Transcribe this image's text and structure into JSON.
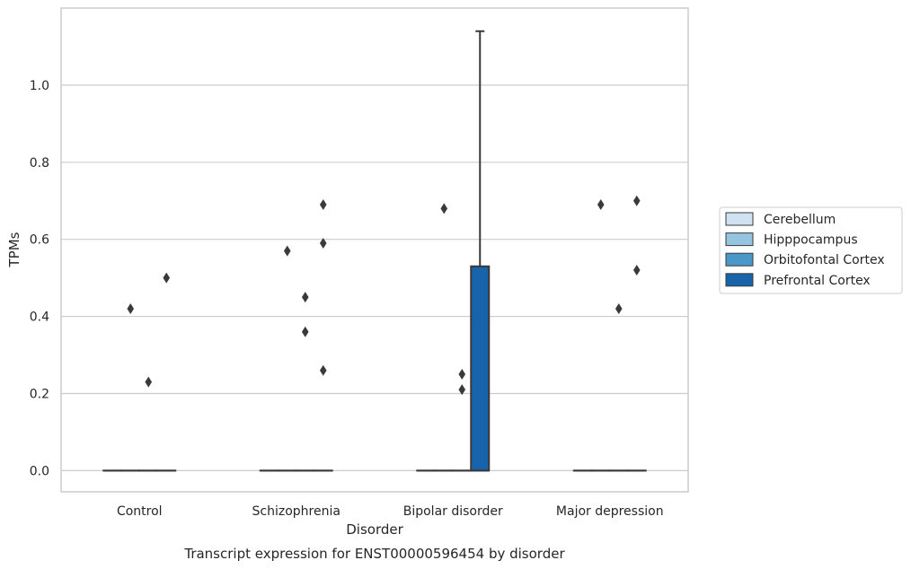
{
  "chart_data": {
    "type": "box",
    "xlabel": "Disorder",
    "ylabel": "TPMs",
    "caption": "Transcript expression for ENST00000596454 by disorder",
    "ylim": [
      -0.055,
      1.2
    ],
    "yticks": [
      0.0,
      0.2,
      0.4,
      0.6,
      0.8,
      1.0
    ],
    "ytick_labels": [
      "0.0",
      "0.2",
      "0.4",
      "0.6",
      "0.8",
      "1.0"
    ],
    "grid": true,
    "legend_position": "right, outside plot",
    "categories": [
      "Control",
      "Schizophrenia",
      "Bipolar disorder",
      "Major depression"
    ],
    "series": [
      {
        "name": "Cerebellum",
        "color": "#d0e1f2",
        "boxes": [
          {
            "category": "Control",
            "min": 0,
            "q1": 0,
            "median": 0,
            "q3": 0,
            "max": 0,
            "outliers": []
          },
          {
            "category": "Schizophrenia",
            "min": 0,
            "q1": 0,
            "median": 0,
            "q3": 0,
            "max": 0,
            "outliers": []
          },
          {
            "category": "Bipolar disorder",
            "min": 0,
            "q1": 0,
            "median": 0,
            "q3": 0,
            "max": 0,
            "outliers": []
          },
          {
            "category": "Major depression",
            "min": 0,
            "q1": 0,
            "median": 0,
            "q3": 0,
            "max": 0,
            "outliers": []
          }
        ]
      },
      {
        "name": "Hipppocampus",
        "color": "#94c4df",
        "boxes": [
          {
            "category": "Control",
            "min": 0,
            "q1": 0,
            "median": 0,
            "q3": 0,
            "max": 0,
            "outliers": [
              0.42
            ]
          },
          {
            "category": "Schizophrenia",
            "min": 0,
            "q1": 0,
            "median": 0,
            "q3": 0,
            "max": 0,
            "outliers": [
              0.57
            ]
          },
          {
            "category": "Bipolar disorder",
            "min": 0,
            "q1": 0,
            "median": 0,
            "q3": 0,
            "max": 0,
            "outliers": [
              0.68
            ]
          },
          {
            "category": "Major depression",
            "min": 0,
            "q1": 0,
            "median": 0,
            "q3": 0,
            "max": 0,
            "outliers": [
              0.69
            ]
          }
        ]
      },
      {
        "name": "Orbitofontal Cortex",
        "color": "#4a98c9",
        "boxes": [
          {
            "category": "Control",
            "min": 0,
            "q1": 0,
            "median": 0,
            "q3": 0,
            "max": 0,
            "outliers": [
              0.23
            ]
          },
          {
            "category": "Schizophrenia",
            "min": 0,
            "q1": 0,
            "median": 0,
            "q3": 0,
            "max": 0,
            "outliers": [
              0.45,
              0.36
            ]
          },
          {
            "category": "Bipolar disorder",
            "min": 0,
            "q1": 0,
            "median": 0,
            "q3": 0,
            "max": 0,
            "outliers": [
              0.25,
              0.21
            ]
          },
          {
            "category": "Major depression",
            "min": 0,
            "q1": 0,
            "median": 0,
            "q3": 0,
            "max": 0,
            "outliers": [
              0.42
            ]
          }
        ]
      },
      {
        "name": "Prefrontal Cortex",
        "color": "#1764ab",
        "boxes": [
          {
            "category": "Control",
            "min": 0,
            "q1": 0,
            "median": 0,
            "q3": 0,
            "max": 0,
            "outliers": [
              0.5
            ]
          },
          {
            "category": "Schizophrenia",
            "min": 0,
            "q1": 0,
            "median": 0,
            "q3": 0,
            "max": 0,
            "outliers": [
              0.69,
              0.59,
              0.26
            ]
          },
          {
            "category": "Bipolar disorder",
            "min": 0,
            "q1": 0,
            "median": 0,
            "q3": 0.53,
            "max": 1.14,
            "outliers": []
          },
          {
            "category": "Major depression",
            "min": 0,
            "q1": 0,
            "median": 0,
            "q3": 0,
            "max": 0,
            "outliers": [
              0.7,
              0.52
            ]
          }
        ]
      }
    ]
  }
}
